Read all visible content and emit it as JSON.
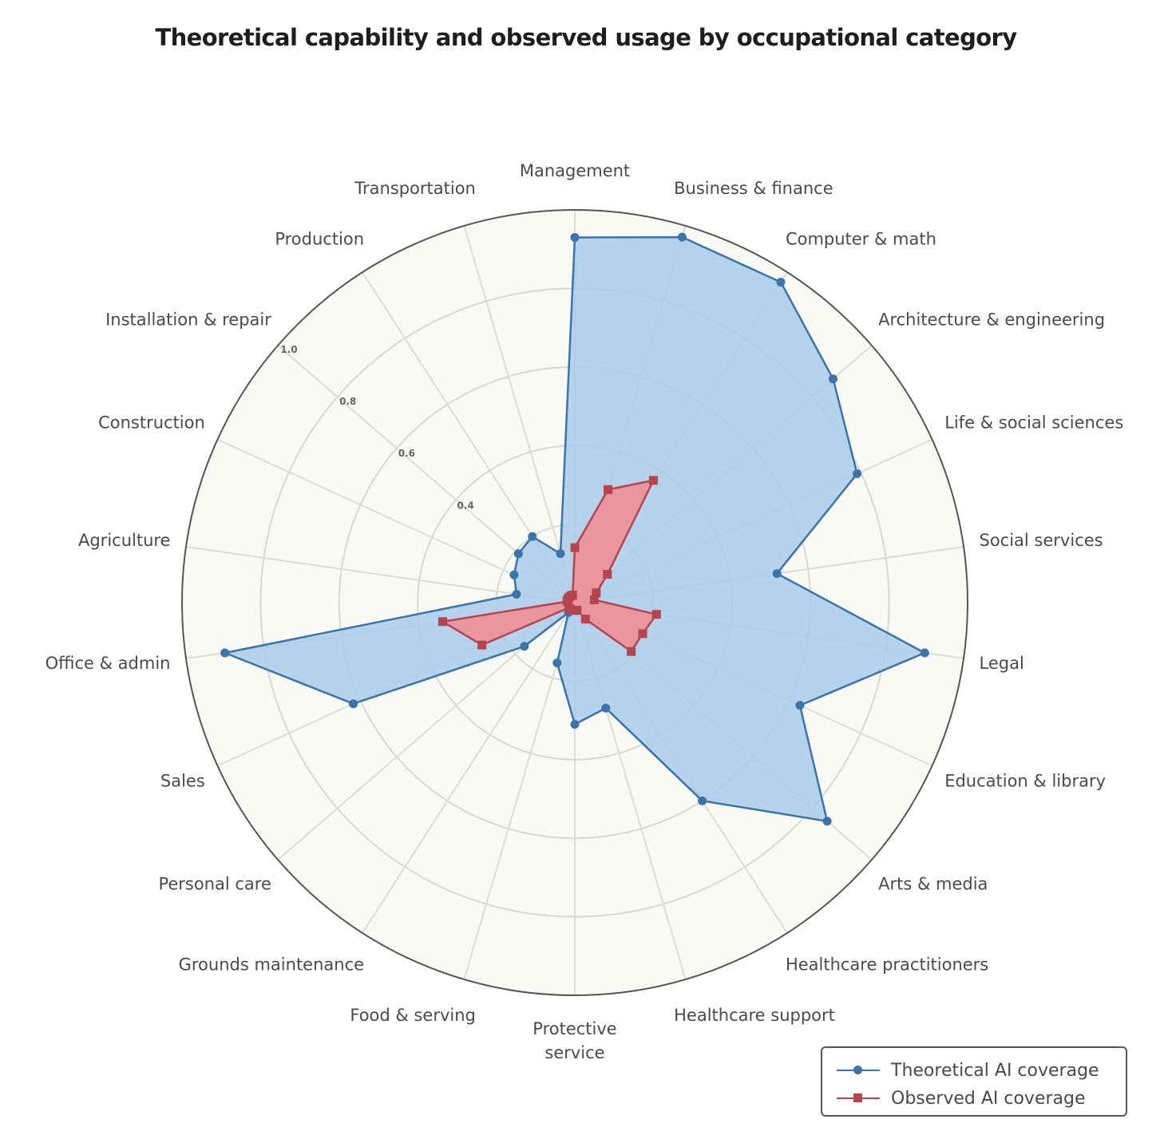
{
  "chart_data": {
    "type": "radar",
    "title": "Theoretical capability and observed usage by occupational category",
    "categories": [
      "Management",
      "Business & finance",
      "Computer & math",
      "Architecture & engineering",
      "Life & social sciences",
      "Social services",
      "Legal",
      "Education & library",
      "Arts & media",
      "Healthcare practitioners",
      "Healthcare support",
      "Protective service",
      "Food & serving",
      "Grounds maintenance",
      "Personal care",
      "Sales",
      "Office & admin",
      "Agriculture",
      "Construction",
      "Installation & repair",
      "Production",
      "Transportation"
    ],
    "radial_ticks": [
      "0.4",
      "0.6",
      "0.8",
      "1.0"
    ],
    "radial_tick_values": [
      0.4,
      0.6,
      0.8,
      1.0
    ],
    "rlim": [
      0,
      1.0
    ],
    "grid": true,
    "legend_position": "bottom-right",
    "series": [
      {
        "name": "Theoretical AI coverage",
        "color": "#3b74a8",
        "fill": "#a9cbeb",
        "marker": "circle",
        "values": [
          0.93,
          0.97,
          0.97,
          0.87,
          0.79,
          0.52,
          0.9,
          0.63,
          0.85,
          0.6,
          0.28,
          0.31,
          0.16,
          0.03,
          0.17,
          0.62,
          0.9,
          0.15,
          0.17,
          0.19,
          0.2,
          0.13
        ]
      },
      {
        "name": "Observed AI coverage",
        "color": "#b5444f",
        "fill": "#ee8f96",
        "marker": "square",
        "values": [
          0.14,
          0.3,
          0.37,
          0.11,
          0.06,
          0.05,
          0.21,
          0.19,
          0.19,
          0.05,
          0.02,
          0.02,
          0.02,
          0.02,
          0.02,
          0.26,
          0.34,
          0.02,
          0.02,
          0.02,
          0.02,
          0.02
        ]
      }
    ]
  }
}
